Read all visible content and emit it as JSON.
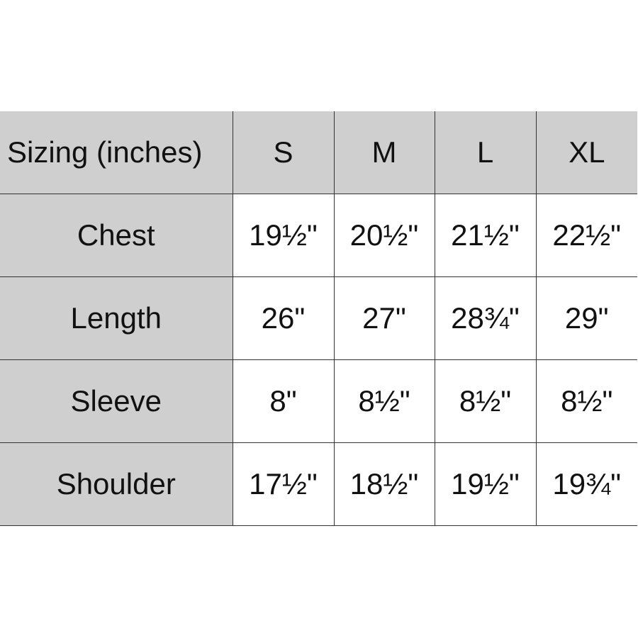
{
  "table": {
    "header": [
      "Sizing (inches)",
      "S",
      "M",
      "L",
      "XL"
    ],
    "rows": [
      {
        "label": "Chest",
        "values": [
          "19½\"",
          "20½\"",
          "21½\"",
          "22½\""
        ]
      },
      {
        "label": "Length",
        "values": [
          "26\"",
          "27\"",
          "28¾\"",
          "29\""
        ]
      },
      {
        "label": "Sleeve",
        "values": [
          "8\"",
          "8½\"",
          "8½\"",
          "8½\""
        ]
      },
      {
        "label": "Shoulder",
        "values": [
          "17½\"",
          "18½\"",
          "19½\"",
          "19¾\""
        ]
      }
    ],
    "colors": {
      "header_fill": "#d0cfcf",
      "cell_fill": "#ffffff",
      "border": "#333333"
    }
  }
}
